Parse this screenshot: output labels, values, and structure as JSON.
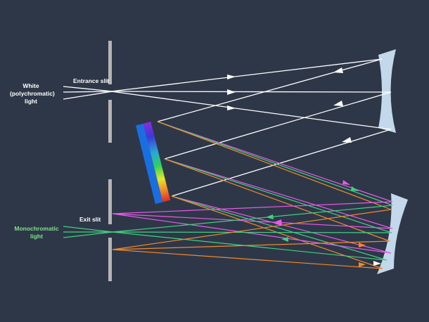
{
  "labels": {
    "white_light": [
      "White",
      "(polychromatic)",
      "light"
    ],
    "entrance_slit": "Entrance slit",
    "exit_slit": "Exit slit",
    "mono_light": [
      "Monochromatic",
      "light"
    ]
  },
  "colors": {
    "background": "#2e3748",
    "white_ray": "#ffffff",
    "magenta_ray": "#e85ae8",
    "green_ray": "#3fd27f",
    "orange_ray": "#f08a2a",
    "mirror": "#c3d8ea",
    "slit": "#b5b5b5",
    "mono_label": "#7ee08a"
  }
}
